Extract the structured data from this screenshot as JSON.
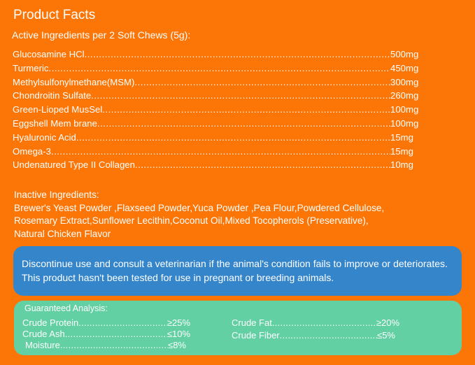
{
  "title": "Product Facts",
  "active_heading": "Active Ingredients per 2 Soft Chews (5g):",
  "active": [
    {
      "name": "Glucosamine HCl",
      "amount": "500mg"
    },
    {
      "name": "Turmeric",
      "amount": "450mg"
    },
    {
      "name": "Methylsulfonylmethane(MSM)",
      "amount": "300mg"
    },
    {
      "name": "Chondroitin Sulfate ",
      "amount": "260mg"
    },
    {
      "name": "Green-Lioped MusSel",
      "amount": "100mg"
    },
    {
      "name": "Eggshell Mem brane",
      "amount": "100mg"
    },
    {
      "name": "Hyaluronic Acid",
      "amount": "15mg"
    },
    {
      "name": "Omega-3",
      "amount": "15mg"
    },
    {
      "name": "Undenatured Type II Collagen",
      "amount": "10mg"
    }
  ],
  "inactive_heading": "Inactive Ingredients:",
  "inactive_lines": [
    "Brewer's Yeast Powder ,Flaxseed Powder,Yuca Powder ,Pea Flour,Powdered Cellulose,",
    "Rosemary Extract,Sunflower Lecithin,Coconut Oil,Mixed Tocopherols (Preservative),",
    "Natural Chicken Flavor"
  ],
  "warning": "Discontinue use and consult a veterinarian if the animal's condition fails to improve or deteriorates. This product hasn't been tested for use in pregnant or breeding animals.",
  "analysis": {
    "heading": "Guaranteed Analysis:",
    "items": [
      {
        "name": "Crude Protein",
        "value": "≥25%"
      },
      {
        "name": "Crude Ash",
        "value": "≤10%"
      },
      {
        "name": "Moisture",
        "value": "≤8%"
      },
      {
        "name": "Crude Fat",
        "value": "≥20%"
      },
      {
        "name": "Crude Fiber",
        "value": "≤5%"
      }
    ]
  },
  "colors": {
    "background": "#fb7607",
    "warning_box": "#3585cb",
    "analysis_box": "#62d0a3"
  }
}
